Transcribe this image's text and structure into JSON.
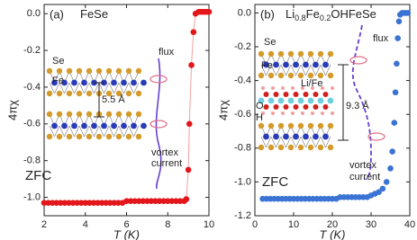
{
  "chart_data": [
    {
      "type": "scatter",
      "panel_label": "(a)",
      "title_parts": [
        "FeSe"
      ],
      "xlabel": "T (K)",
      "ylabel": "4πχ",
      "xlim": [
        2,
        10
      ],
      "xticks": [
        2,
        4,
        6,
        8,
        10
      ],
      "ylim": [
        -1.1,
        0.05
      ],
      "yticks": [
        {
          "value": 0,
          "label": "0.0"
        },
        -0.2,
        -0.4,
        -0.6,
        -0.8,
        {
          "value": -1,
          "label": "-1.0"
        }
      ],
      "color": "#e3161b",
      "line": true,
      "line_color": "#f4a0a0",
      "x": [
        2.0,
        2.2,
        2.4,
        2.6,
        2.8,
        3.0,
        3.2,
        3.4,
        3.6,
        3.8,
        4.0,
        4.2,
        4.4,
        4.6,
        4.8,
        5.0,
        5.2,
        5.4,
        5.6,
        5.8,
        6.0,
        6.2,
        6.4,
        6.6,
        6.8,
        7.0,
        7.2,
        7.4,
        7.6,
        7.8,
        8.0,
        8.2,
        8.4,
        8.6,
        8.8,
        8.9,
        9.0,
        9.05,
        9.15,
        9.25,
        9.35,
        9.5,
        9.6,
        9.7,
        9.8,
        9.9,
        10.0
      ],
      "values": [
        -1.03,
        -1.03,
        -1.03,
        -1.03,
        -1.03,
        -1.03,
        -1.03,
        -1.03,
        -1.03,
        -1.03,
        -1.03,
        -1.03,
        -1.03,
        -1.03,
        -1.03,
        -1.03,
        -1.03,
        -1.03,
        -1.03,
        -1.03,
        -1.02,
        -1.02,
        -1.02,
        -1.02,
        -1.02,
        -1.02,
        -1.02,
        -1.02,
        -1.02,
        -1.02,
        -1.02,
        -1.02,
        -1.02,
        -1.02,
        -1.02,
        -1.01,
        -0.85,
        -0.6,
        -0.28,
        -0.1,
        0.0,
        0.01,
        0.01,
        0.01,
        0.01,
        0.01,
        0.01
      ],
      "annotations": [
        "Se",
        "Fe",
        "5.5 Å",
        "flux",
        "vortex",
        "current",
        "ZFC"
      ]
    },
    {
      "type": "scatter",
      "panel_label": "(b)",
      "title_parts": [
        "Li",
        "0.8",
        "Fe",
        "0.2",
        "OHFeSe"
      ],
      "xlabel": "T (K)",
      "ylabel": "4πχ",
      "xlim": [
        0,
        40
      ],
      "xticks": [
        0,
        10,
        20,
        30,
        40
      ],
      "ylim": [
        -1.2,
        0.05
      ],
      "yticks": [
        {
          "value": 0,
          "label": "0.0"
        },
        -0.2,
        -0.4,
        -0.6,
        -0.8,
        {
          "value": -1,
          "label": "-1.0"
        },
        -1.2
      ],
      "color": "#3b73d4",
      "line": false,
      "x": [
        2,
        3,
        4,
        5,
        6,
        7,
        8,
        9,
        10,
        11,
        12,
        13,
        14,
        15,
        16,
        17,
        18,
        19,
        20,
        21,
        22,
        23,
        24,
        25,
        26,
        27,
        28,
        29,
        30,
        31,
        32,
        33,
        34,
        35,
        35.5,
        36,
        36.3,
        36.6,
        36.9,
        37.2,
        37.5,
        38,
        38.5,
        39,
        39.5
      ],
      "values": [
        -1.1,
        -1.1,
        -1.1,
        -1.1,
        -1.1,
        -1.1,
        -1.1,
        -1.1,
        -1.1,
        -1.1,
        -1.1,
        -1.1,
        -1.1,
        -1.1,
        -1.1,
        -1.1,
        -1.1,
        -1.1,
        -1.1,
        -1.1,
        -1.09,
        -1.09,
        -1.09,
        -1.09,
        -1.09,
        -1.09,
        -1.09,
        -1.09,
        -1.08,
        -1.07,
        -1.06,
        -1.04,
        -1.0,
        -0.92,
        -0.82,
        -0.65,
        -0.47,
        -0.3,
        -0.15,
        -0.05,
        -0.01,
        0,
        0,
        0,
        0
      ],
      "annotations": [
        "Se",
        "Fe",
        "Li/Fe",
        "O",
        "H",
        "9.3 Å",
        "flux",
        "vortex",
        "current",
        "ZFC"
      ]
    }
  ]
}
